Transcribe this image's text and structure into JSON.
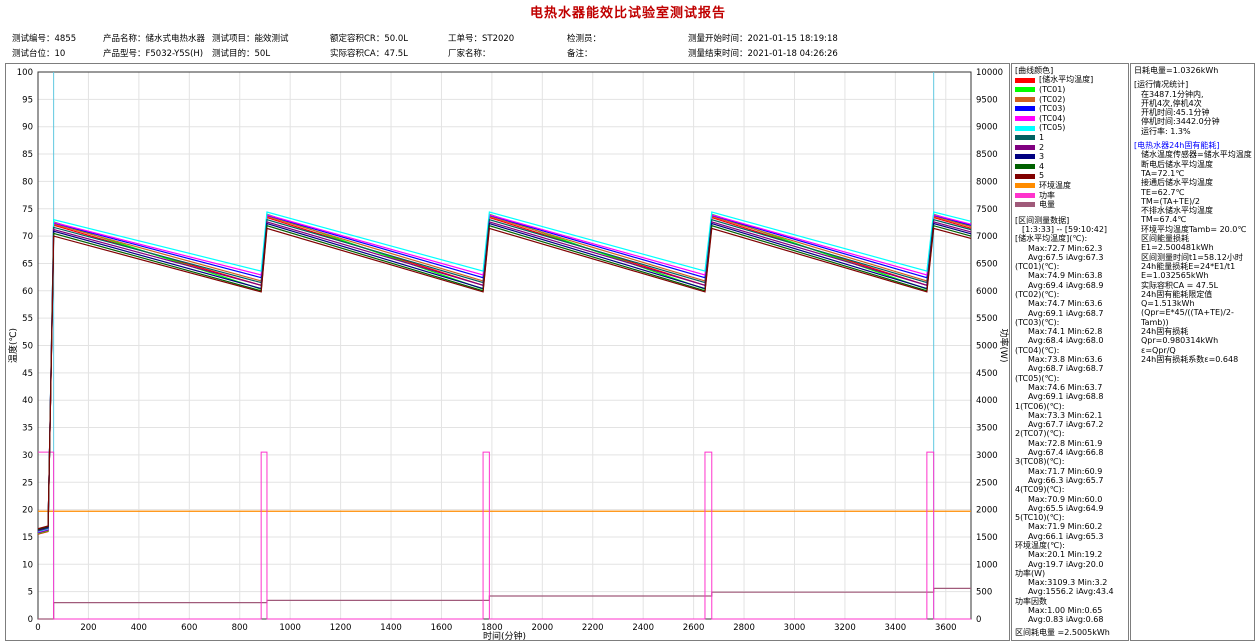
{
  "report": {
    "title": "电热水器能效比试验室测试报告",
    "row1": [
      {
        "key": "测试编号：",
        "val": "4855"
      },
      {
        "key": "产品名称：",
        "val": "储水式电热水器"
      },
      {
        "key": "测试项目：",
        "val": "能效测试"
      },
      {
        "key": "额定容积CR：",
        "val": "50.0L"
      },
      {
        "key": "工单号：",
        "val": "ST2020"
      },
      {
        "key": "检测员：",
        "val": ""
      },
      {
        "key": "测量开始时间：",
        "val": "2021-01-15 18:19:18"
      }
    ],
    "row2": [
      {
        "key": "测试台位：",
        "val": "10"
      },
      {
        "key": "产品型号：",
        "val": "F5032-Y5S(H)"
      },
      {
        "key": "测试目的：",
        "val": "50L"
      },
      {
        "key": "实际容积CA：",
        "val": "47.5L"
      },
      {
        "key": "厂家名称：",
        "val": ""
      },
      {
        "key": "备注：",
        "val": ""
      },
      {
        "key": "测量结束时间：",
        "val": "2021-01-18 04:26:26"
      }
    ]
  },
  "chart_data": {
    "type": "line",
    "xlabel": "时间(分钟)",
    "ylabel": "温度(℃)",
    "y2label": "功率(W)",
    "xlim": [
      0,
      3700
    ],
    "ylim": [
      0,
      100
    ],
    "y2lim": [
      0,
      10000
    ],
    "xticks": [
      0,
      200,
      400,
      600,
      800,
      1000,
      1200,
      1400,
      1600,
      1800,
      2000,
      2200,
      2400,
      2600,
      2800,
      3000,
      3200,
      3400,
      3600
    ],
    "yticks": [
      0,
      5,
      10,
      15,
      20,
      25,
      30,
      35,
      40,
      45,
      50,
      55,
      60,
      65,
      70,
      75,
      80,
      85,
      90,
      95,
      100
    ],
    "y2ticks": [
      0,
      500,
      1000,
      1500,
      2000,
      2500,
      3000,
      3500,
      4000,
      4500,
      5000,
      5500,
      6000,
      6500,
      7000,
      7500,
      8000,
      8500,
      9000,
      9500,
      10000
    ],
    "grid": true,
    "heating_periods": [
      [
        0,
        62
      ],
      [
        885,
        908
      ],
      [
        1765,
        1790
      ],
      [
        2645,
        2672
      ],
      [
        3525,
        3552
      ]
    ],
    "markers_x": [
      62,
      3552
    ],
    "series": [
      {
        "name": "储水平均温度",
        "color": "#ff0000",
        "axis": "y",
        "peak": 72.0,
        "low": 61.0
      },
      {
        "name": "TC01",
        "color": "#00ff00",
        "axis": "y",
        "peak": 72.6,
        "low": 60.3
      },
      {
        "name": "TC02",
        "color": "#d06020",
        "axis": "y",
        "peak": 72.2,
        "low": 61.8
      },
      {
        "name": "TC03",
        "color": "#0000ff",
        "axis": "y",
        "peak": 72.4,
        "low": 62.4
      },
      {
        "name": "TC04",
        "color": "#ff00ff",
        "axis": "y",
        "peak": 72.5,
        "low": 62.9
      },
      {
        "name": "TC05",
        "color": "#00ffff",
        "axis": "y",
        "peak": 73.0,
        "low": 63.6
      },
      {
        "name": "1",
        "color": "#006060",
        "axis": "y",
        "peak": 71.6,
        "low": 61.5
      },
      {
        "name": "2",
        "color": "#800080",
        "axis": "y",
        "peak": 71.2,
        "low": 61.0
      },
      {
        "name": "3",
        "color": "#000080",
        "axis": "y",
        "peak": 70.9,
        "low": 60.4
      },
      {
        "name": "4",
        "color": "#006000",
        "axis": "y",
        "peak": 70.5,
        "low": 60.0
      },
      {
        "name": "5",
        "color": "#800000",
        "axis": "y",
        "peak": 70.0,
        "low": 59.8
      },
      {
        "name": "环境温度",
        "color": "#ff8c00",
        "axis": "y",
        "constant": 19.7
      },
      {
        "name": "功率",
        "color": "#ff33cc",
        "axis": "y2",
        "on_value": 3050,
        "off_value": 0
      },
      {
        "name": "电量",
        "color": "#a05a7a",
        "axis": "y2",
        "steps": [
          [
            0,
            0
          ],
          [
            62,
            300
          ],
          [
            908,
            340
          ],
          [
            1790,
            420
          ],
          [
            2672,
            490
          ],
          [
            3552,
            560
          ],
          [
            3700,
            560
          ]
        ]
      }
    ]
  },
  "legend": {
    "title": "[曲线颜色]",
    "items": [
      {
        "label": "[储水平均温度]",
        "color": "#ff0000"
      },
      {
        "label": "(TC01)",
        "color": "#00ff00"
      },
      {
        "label": "(TC02)",
        "color": "#d06020"
      },
      {
        "label": "(TC03)",
        "color": "#0000ff"
      },
      {
        "label": "(TC04)",
        "color": "#ff00ff"
      },
      {
        "label": "(TC05)",
        "color": "#00ffff"
      },
      {
        "label": "1",
        "color": "#006060"
      },
      {
        "label": "2",
        "color": "#800080"
      },
      {
        "label": "3",
        "color": "#000080"
      },
      {
        "label": "4",
        "color": "#006000"
      },
      {
        "label": "5",
        "color": "#800000"
      },
      {
        "label": "环境温度",
        "color": "#ff8c00"
      },
      {
        "label": "功率",
        "color": "#ff33cc"
      },
      {
        "label": "电量",
        "color": "#a05a7a"
      }
    ],
    "stats": [
      "[区间测量数据]",
      "  [1:3:33] -- [59:10:42]",
      "[储水平均温度](℃):",
      "    Max:72.7 Min:62.3",
      "    Avg:67.5 iAvg:67.3",
      "(TC01)(℃):",
      "    Max:74.9 Min:63.8",
      "    Avg:69.4 iAvg:68.9",
      "(TC02)(℃):",
      "    Max:74.7 Min:63.6",
      "    Avg:69.1 iAvg:68.7",
      "(TC03)(℃):",
      "    Max:74.1 Min:62.8",
      "    Avg:68.4 iAvg:68.0",
      "(TC04)(℃):",
      "    Max:73.8 Min:63.6",
      "    Avg:68.7 iAvg:68.7",
      "(TC05)(℃):",
      "    Max:74.6 Min:63.7",
      "    Avg:69.1 iAvg:68.8",
      "1(TC06)(℃):",
      "    Max:73.3 Min:62.1",
      "    Avg:67.7 iAvg:67.2",
      "2(TC07)(℃):",
      "    Max:72.8 Min:61.9",
      "    Avg:67.4 iAvg:66.8",
      "3(TC08)(℃):",
      "    Max:71.7 Min:60.9",
      "    Avg:66.3 iAvg:65.7",
      "4(TC09)(℃):",
      "    Max:70.9 Min:60.0",
      "    Avg:65.5 iAvg:64.9",
      "5(TC10)(℃):",
      "    Max:71.9 Min:60.2",
      "    Avg:66.1 iAvg:65.3",
      "环境温度(℃):",
      "    Max:20.1 Min:19.2",
      "    Avg:19.7 iAvg:20.0",
      "功率(W)",
      "    Max:3109.3 Min:3.2",
      "    Avg:1556.2 iAvg:43.4",
      "功率因数",
      "    Max:1.00 Min:0.65",
      "    Avg:0.83 iAvg:0.68"
    ],
    "bottom": "区间耗电量 =2.5005kWh"
  },
  "summary": {
    "daily": "日耗电量=1.0326kWh",
    "run_title": "[运行情况统计]",
    "run_lines": [
      "在3487.1分钟内,",
      "开机4次,停机4次",
      "开机时间:45.1分钟",
      "停机时间:3442.0分钟",
      "运行率: 1.3%"
    ],
    "energy_title": "[电热水器24h固有能耗]",
    "energy_lines": [
      "储水温度传感器=储水平均温度",
      "断电后储水平均温度TA=72.1℃",
      "接通后储水平均温度TE=62.7℃",
      "TM=(TA+TE)/2",
      "不排水储水平均温度TM=67.4℃",
      "环境平均温度Tamb= 20.0℃",
      "区间能量损耗E1=2.500481kWh",
      "区间测量时间t1=58.12小时",
      "24h能量损耗E=24*E1/t1",
      "  E=1.032565kWh",
      "实际容积CA = 47.5L",
      "24h固有能耗限定值Q=1.513kWh",
      "(Qpr=E*45/((TA+TE)/2-Tamb))",
      "24h固有损耗Qpr=0.980314kWh",
      "ε=Qpr/Q",
      "24h固有损耗系数ε=0.648"
    ]
  }
}
